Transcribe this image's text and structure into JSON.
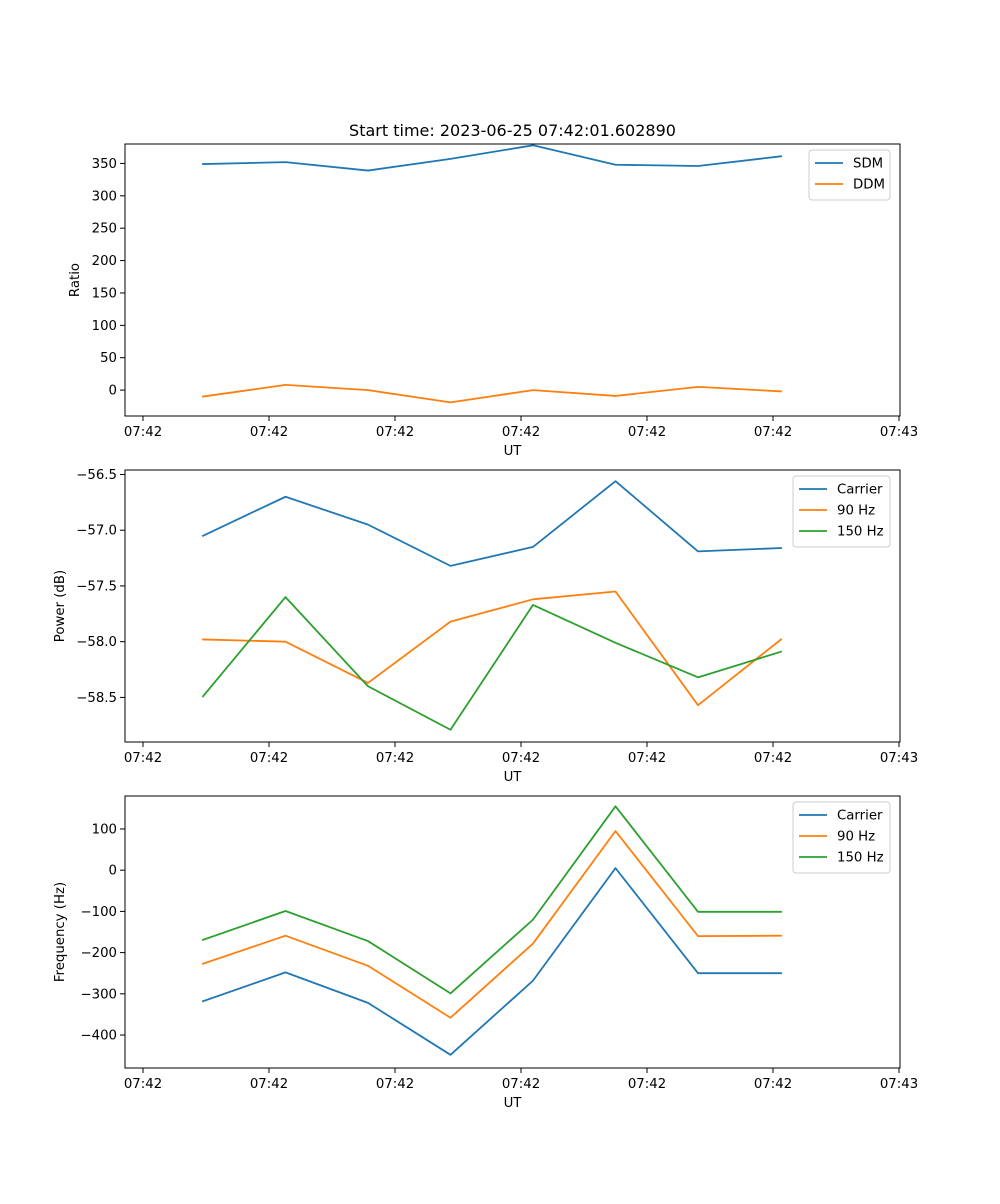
{
  "figure_title": "Start time: 2023-06-25 07:42:01.602890",
  "colors": {
    "C0": "#1f77b4",
    "C1": "#ff7f0e",
    "C2": "#2ca02c"
  },
  "chart_data": [
    {
      "type": "line",
      "title": "Start time: 2023-06-25 07:42:01.602890",
      "xlabel": "UT",
      "ylabel": "Ratio",
      "x_tick_labels": [
        "07:42",
        "07:42",
        "07:42",
        "07:42",
        "07:42",
        "07:42",
        "07:43"
      ],
      "y_ticks": [
        0,
        50,
        100,
        150,
        200,
        250,
        300,
        350
      ],
      "ylim": [
        -40,
        380
      ],
      "legend_position": "top-right",
      "grid": false,
      "series": [
        {
          "name": "SDM",
          "color": "#1f77b4",
          "values": [
            349,
            352,
            339,
            357,
            378,
            348,
            346,
            361
          ]
        },
        {
          "name": "DDM",
          "color": "#ff7f0e",
          "values": [
            -10,
            8,
            0,
            -19,
            0,
            -9,
            5,
            -2
          ]
        }
      ]
    },
    {
      "type": "line",
      "xlabel": "UT",
      "ylabel": "Power (dB)",
      "x_tick_labels": [
        "07:42",
        "07:42",
        "07:42",
        "07:42",
        "07:42",
        "07:42",
        "07:43"
      ],
      "y_ticks": [
        -56.5,
        -57.0,
        -57.5,
        -58.0,
        -58.5
      ],
      "y_tick_labels": [
        "−56.5",
        "−57.0",
        "−57.5",
        "−58.0",
        "−58.5"
      ],
      "ylim": [
        -58.9,
        -56.46
      ],
      "legend_position": "top-right",
      "grid": false,
      "series": [
        {
          "name": "Carrier",
          "color": "#1f77b4",
          "values": [
            -57.05,
            -56.7,
            -56.95,
            -57.32,
            -57.15,
            -56.56,
            -57.19,
            -57.16
          ]
        },
        {
          "name": "90 Hz",
          "color": "#ff7f0e",
          "values": [
            -57.98,
            -58.0,
            -58.37,
            -57.82,
            -57.62,
            -57.55,
            -58.57,
            -57.98
          ]
        },
        {
          "name": "150 Hz",
          "color": "#2ca02c",
          "values": [
            -58.49,
            -57.6,
            -58.4,
            -58.79,
            -57.67,
            -58.01,
            -58.32,
            -58.09
          ]
        }
      ]
    },
    {
      "type": "line",
      "xlabel": "UT",
      "ylabel": "Frequency (Hz)",
      "x_tick_labels": [
        "07:42",
        "07:42",
        "07:42",
        "07:42",
        "07:42",
        "07:42",
        "07:43"
      ],
      "y_ticks": [
        100,
        0,
        -100,
        -200,
        -300,
        -400
      ],
      "y_tick_labels": [
        "100",
        "0",
        "−100",
        "−200",
        "−300",
        "−400"
      ],
      "ylim": [
        -480,
        180
      ],
      "legend_position": "top-right",
      "grid": false,
      "series": [
        {
          "name": "Carrier",
          "color": "#1f77b4",
          "values": [
            -318,
            -248,
            -322,
            -448,
            -268,
            5,
            -250,
            -250
          ]
        },
        {
          "name": "90 Hz",
          "color": "#ff7f0e",
          "values": [
            -227,
            -159,
            -232,
            -358,
            -178,
            95,
            -160,
            -159
          ]
        },
        {
          "name": "150 Hz",
          "color": "#2ca02c",
          "values": [
            -169,
            -99,
            -172,
            -299,
            -120,
            155,
            -101,
            -101
          ]
        }
      ]
    }
  ]
}
